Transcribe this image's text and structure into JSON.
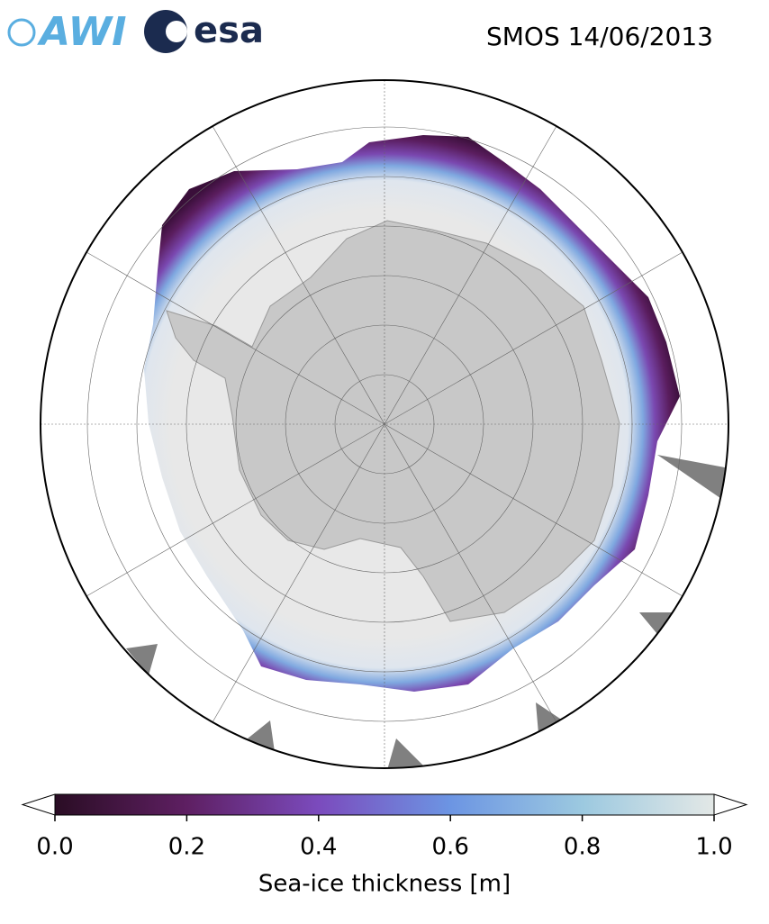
{
  "header": {
    "logos": [
      "AWI",
      "esa"
    ],
    "title": "SMOS 14/06/2013"
  },
  "colorbar": {
    "label": "Sea-ice thickness [m]",
    "lim": [
      0,
      1
    ],
    "ticks": [
      {
        "value": 0,
        "label": "0.0"
      },
      {
        "value": 0.2,
        "label": "0.2"
      },
      {
        "value": 0.4,
        "label": "0.4"
      },
      {
        "value": 0.6,
        "label": "0.6"
      },
      {
        "value": 0.8,
        "label": "0.8"
      },
      {
        "value": 1,
        "label": "1.0"
      }
    ],
    "colors": [
      "#2a0d24",
      "#5e1f62",
      "#7b4bbd",
      "#6c95e3",
      "#9cc9e0",
      "#e3e8e6"
    ]
  }
}
